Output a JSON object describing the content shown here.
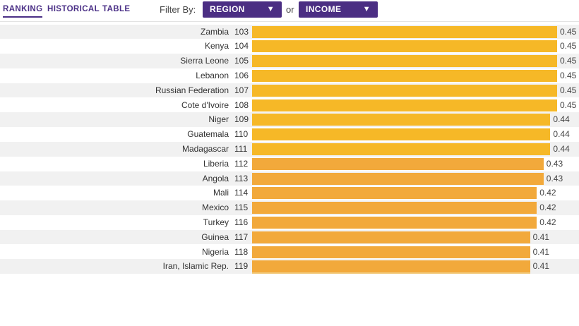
{
  "tabs": [
    {
      "label": "RANKING",
      "active": true
    },
    {
      "label": "HISTORICAL",
      "active": false
    },
    {
      "label": "TABLE",
      "active": false
    }
  ],
  "filter": {
    "label": "Filter By:",
    "or_label": "or",
    "region": {
      "label": "REGION",
      "icon": "triangle-down-icon"
    },
    "income": {
      "label": "INCOME",
      "icon": "triangle-down-icon"
    }
  },
  "colors": {
    "accent": "#4b2e83",
    "bar_high": "#f6b827",
    "bar_low": "#f2a93b",
    "row_shade": "#f1f1f1"
  },
  "chart_data": {
    "type": "bar",
    "orientation": "horizontal",
    "rows": [
      {
        "country": "Zambia",
        "rank": "103",
        "value": 0.45
      },
      {
        "country": "Kenya",
        "rank": "104",
        "value": 0.45
      },
      {
        "country": "Sierra Leone",
        "rank": "105",
        "value": 0.45
      },
      {
        "country": "Lebanon",
        "rank": "106",
        "value": 0.45
      },
      {
        "country": "Russian Federation",
        "rank": "107",
        "value": 0.45
      },
      {
        "country": "Cote d'Ivoire",
        "rank": "108",
        "value": 0.45
      },
      {
        "country": "Niger",
        "rank": "109",
        "value": 0.44
      },
      {
        "country": "Guatemala",
        "rank": "110",
        "value": 0.44
      },
      {
        "country": "Madagascar",
        "rank": "111",
        "value": 0.44
      },
      {
        "country": "Liberia",
        "rank": "112",
        "value": 0.43
      },
      {
        "country": "Angola",
        "rank": "113",
        "value": 0.43
      },
      {
        "country": "Mali",
        "rank": "114",
        "value": 0.42
      },
      {
        "country": "Mexico",
        "rank": "115",
        "value": 0.42
      },
      {
        "country": "Turkey",
        "rank": "116",
        "value": 0.42
      },
      {
        "country": "Guinea",
        "rank": "117",
        "value": 0.41
      },
      {
        "country": "Nigeria",
        "rank": "118",
        "value": 0.41
      },
      {
        "country": "Iran, Islamic Rep.",
        "rank": "119",
        "value": 0.41
      }
    ]
  }
}
